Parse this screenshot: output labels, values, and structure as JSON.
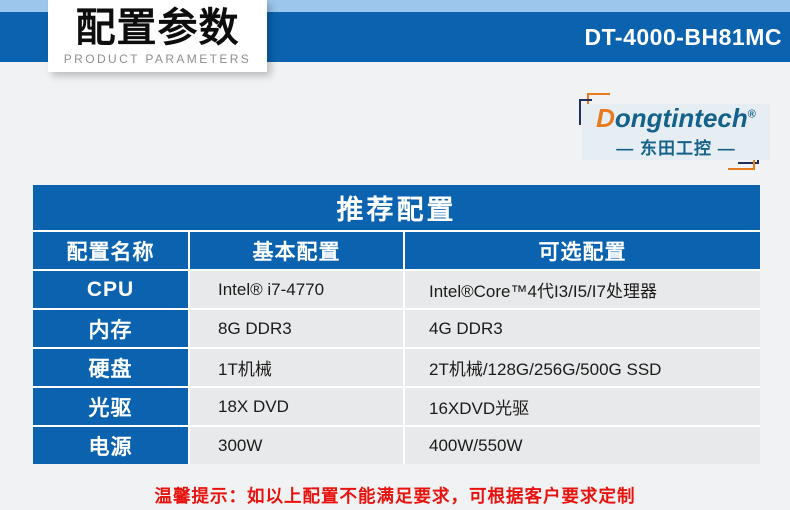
{
  "colors": {
    "accent-blue": "#0b63af",
    "light-blue": "#9cc6ec",
    "page-gray": "#f1f2f3",
    "cell-gray": "#e8e9ea",
    "brand-orange": "#e87a1e",
    "brand-teal": "#14618a",
    "navy": "#1c2f5d",
    "note-red": "#e8120e"
  },
  "header": {
    "title": "配置参数",
    "subtitle": "PRODUCT PARAMETERS",
    "model": "DT-4000-BH81MC"
  },
  "logo": {
    "brand_initial": "D",
    "brand_rest": "ongtintech",
    "registered_mark": "®",
    "chinese_name": "— 东田工控 —"
  },
  "table": {
    "title": "推荐配置",
    "columns": [
      "配置名称",
      "基本配置",
      "可选配置"
    ],
    "rows": [
      {
        "name": "CPU",
        "basic": "Intel® i7-4770",
        "optional": "Intel®Core™4代I3/I5/I7处理器"
      },
      {
        "name": "内存",
        "basic": "8G DDR3",
        "optional": "4G DDR3"
      },
      {
        "name": "硬盘",
        "basic": "1T机械",
        "optional": "2T机械/128G/256G/500G SSD"
      },
      {
        "name": "光驱",
        "basic": "18X DVD",
        "optional": "16XDVD光驱"
      },
      {
        "name": "电源",
        "basic": "300W",
        "optional": "400W/550W"
      }
    ]
  },
  "note": "温馨提示：如以上配置不能满足要求，可根据客户要求定制"
}
